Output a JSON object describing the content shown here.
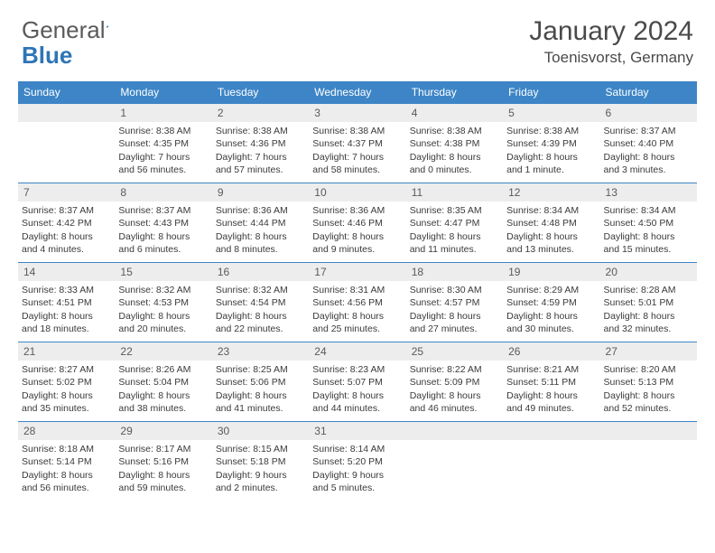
{
  "logo": {
    "text1": "General",
    "text2": "Blue"
  },
  "title": {
    "month": "January 2024",
    "location": "Toenisvorst, Germany"
  },
  "colors": {
    "header_bg": "#3d85c6",
    "header_text": "#ffffff",
    "daynum_bg": "#ededed",
    "daynum_border": "#3d85c6",
    "text": "#3a3a3a",
    "logo_gray": "#5a5a5a",
    "logo_blue": "#2e75b6"
  },
  "weekdays": [
    "Sunday",
    "Monday",
    "Tuesday",
    "Wednesday",
    "Thursday",
    "Friday",
    "Saturday"
  ],
  "weeks": [
    [
      null,
      {
        "d": "1",
        "sr": "Sunrise: 8:38 AM",
        "ss": "Sunset: 4:35 PM",
        "dl1": "Daylight: 7 hours",
        "dl2": "and 56 minutes."
      },
      {
        "d": "2",
        "sr": "Sunrise: 8:38 AM",
        "ss": "Sunset: 4:36 PM",
        "dl1": "Daylight: 7 hours",
        "dl2": "and 57 minutes."
      },
      {
        "d": "3",
        "sr": "Sunrise: 8:38 AM",
        "ss": "Sunset: 4:37 PM",
        "dl1": "Daylight: 7 hours",
        "dl2": "and 58 minutes."
      },
      {
        "d": "4",
        "sr": "Sunrise: 8:38 AM",
        "ss": "Sunset: 4:38 PM",
        "dl1": "Daylight: 8 hours",
        "dl2": "and 0 minutes."
      },
      {
        "d": "5",
        "sr": "Sunrise: 8:38 AM",
        "ss": "Sunset: 4:39 PM",
        "dl1": "Daylight: 8 hours",
        "dl2": "and 1 minute."
      },
      {
        "d": "6",
        "sr": "Sunrise: 8:37 AM",
        "ss": "Sunset: 4:40 PM",
        "dl1": "Daylight: 8 hours",
        "dl2": "and 3 minutes."
      }
    ],
    [
      {
        "d": "7",
        "sr": "Sunrise: 8:37 AM",
        "ss": "Sunset: 4:42 PM",
        "dl1": "Daylight: 8 hours",
        "dl2": "and 4 minutes."
      },
      {
        "d": "8",
        "sr": "Sunrise: 8:37 AM",
        "ss": "Sunset: 4:43 PM",
        "dl1": "Daylight: 8 hours",
        "dl2": "and 6 minutes."
      },
      {
        "d": "9",
        "sr": "Sunrise: 8:36 AM",
        "ss": "Sunset: 4:44 PM",
        "dl1": "Daylight: 8 hours",
        "dl2": "and 8 minutes."
      },
      {
        "d": "10",
        "sr": "Sunrise: 8:36 AM",
        "ss": "Sunset: 4:46 PM",
        "dl1": "Daylight: 8 hours",
        "dl2": "and 9 minutes."
      },
      {
        "d": "11",
        "sr": "Sunrise: 8:35 AM",
        "ss": "Sunset: 4:47 PM",
        "dl1": "Daylight: 8 hours",
        "dl2": "and 11 minutes."
      },
      {
        "d": "12",
        "sr": "Sunrise: 8:34 AM",
        "ss": "Sunset: 4:48 PM",
        "dl1": "Daylight: 8 hours",
        "dl2": "and 13 minutes."
      },
      {
        "d": "13",
        "sr": "Sunrise: 8:34 AM",
        "ss": "Sunset: 4:50 PM",
        "dl1": "Daylight: 8 hours",
        "dl2": "and 15 minutes."
      }
    ],
    [
      {
        "d": "14",
        "sr": "Sunrise: 8:33 AM",
        "ss": "Sunset: 4:51 PM",
        "dl1": "Daylight: 8 hours",
        "dl2": "and 18 minutes."
      },
      {
        "d": "15",
        "sr": "Sunrise: 8:32 AM",
        "ss": "Sunset: 4:53 PM",
        "dl1": "Daylight: 8 hours",
        "dl2": "and 20 minutes."
      },
      {
        "d": "16",
        "sr": "Sunrise: 8:32 AM",
        "ss": "Sunset: 4:54 PM",
        "dl1": "Daylight: 8 hours",
        "dl2": "and 22 minutes."
      },
      {
        "d": "17",
        "sr": "Sunrise: 8:31 AM",
        "ss": "Sunset: 4:56 PM",
        "dl1": "Daylight: 8 hours",
        "dl2": "and 25 minutes."
      },
      {
        "d": "18",
        "sr": "Sunrise: 8:30 AM",
        "ss": "Sunset: 4:57 PM",
        "dl1": "Daylight: 8 hours",
        "dl2": "and 27 minutes."
      },
      {
        "d": "19",
        "sr": "Sunrise: 8:29 AM",
        "ss": "Sunset: 4:59 PM",
        "dl1": "Daylight: 8 hours",
        "dl2": "and 30 minutes."
      },
      {
        "d": "20",
        "sr": "Sunrise: 8:28 AM",
        "ss": "Sunset: 5:01 PM",
        "dl1": "Daylight: 8 hours",
        "dl2": "and 32 minutes."
      }
    ],
    [
      {
        "d": "21",
        "sr": "Sunrise: 8:27 AM",
        "ss": "Sunset: 5:02 PM",
        "dl1": "Daylight: 8 hours",
        "dl2": "and 35 minutes."
      },
      {
        "d": "22",
        "sr": "Sunrise: 8:26 AM",
        "ss": "Sunset: 5:04 PM",
        "dl1": "Daylight: 8 hours",
        "dl2": "and 38 minutes."
      },
      {
        "d": "23",
        "sr": "Sunrise: 8:25 AM",
        "ss": "Sunset: 5:06 PM",
        "dl1": "Daylight: 8 hours",
        "dl2": "and 41 minutes."
      },
      {
        "d": "24",
        "sr": "Sunrise: 8:23 AM",
        "ss": "Sunset: 5:07 PM",
        "dl1": "Daylight: 8 hours",
        "dl2": "and 44 minutes."
      },
      {
        "d": "25",
        "sr": "Sunrise: 8:22 AM",
        "ss": "Sunset: 5:09 PM",
        "dl1": "Daylight: 8 hours",
        "dl2": "and 46 minutes."
      },
      {
        "d": "26",
        "sr": "Sunrise: 8:21 AM",
        "ss": "Sunset: 5:11 PM",
        "dl1": "Daylight: 8 hours",
        "dl2": "and 49 minutes."
      },
      {
        "d": "27",
        "sr": "Sunrise: 8:20 AM",
        "ss": "Sunset: 5:13 PM",
        "dl1": "Daylight: 8 hours",
        "dl2": "and 52 minutes."
      }
    ],
    [
      {
        "d": "28",
        "sr": "Sunrise: 8:18 AM",
        "ss": "Sunset: 5:14 PM",
        "dl1": "Daylight: 8 hours",
        "dl2": "and 56 minutes."
      },
      {
        "d": "29",
        "sr": "Sunrise: 8:17 AM",
        "ss": "Sunset: 5:16 PM",
        "dl1": "Daylight: 8 hours",
        "dl2": "and 59 minutes."
      },
      {
        "d": "30",
        "sr": "Sunrise: 8:15 AM",
        "ss": "Sunset: 5:18 PM",
        "dl1": "Daylight: 9 hours",
        "dl2": "and 2 minutes."
      },
      {
        "d": "31",
        "sr": "Sunrise: 8:14 AM",
        "ss": "Sunset: 5:20 PM",
        "dl1": "Daylight: 9 hours",
        "dl2": "and 5 minutes."
      },
      null,
      null,
      null
    ]
  ]
}
